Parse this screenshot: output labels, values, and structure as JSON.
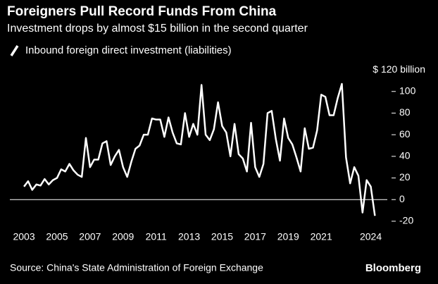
{
  "chart_data": {
    "type": "line",
    "title": "Foreigners Pull Record Funds From China",
    "subtitle": "Investment drops by almost $15 billion in the second quarter",
    "source": "Source: China's State Administration of Foreign Exchange",
    "brand": "Bloomberg",
    "x": [
      2003,
      2003.25,
      2003.5,
      2003.75,
      2004,
      2004.25,
      2004.5,
      2004.75,
      2005,
      2005.25,
      2005.5,
      2005.75,
      2006,
      2006.25,
      2006.5,
      2006.75,
      2007,
      2007.25,
      2007.5,
      2007.75,
      2008,
      2008.25,
      2008.5,
      2008.75,
      2009,
      2009.25,
      2009.5,
      2009.75,
      2010,
      2010.25,
      2010.5,
      2010.75,
      2011,
      2011.25,
      2011.5,
      2011.75,
      2012,
      2012.25,
      2012.5,
      2012.75,
      2013,
      2013.25,
      2013.5,
      2013.75,
      2014,
      2014.25,
      2014.5,
      2014.75,
      2015,
      2015.25,
      2015.5,
      2015.75,
      2016,
      2016.25,
      2016.5,
      2016.75,
      2017,
      2017.25,
      2017.5,
      2017.75,
      2018,
      2018.25,
      2018.5,
      2018.75,
      2019,
      2019.25,
      2019.5,
      2019.75,
      2020,
      2020.25,
      2020.5,
      2020.75,
      2021,
      2021.25,
      2021.5,
      2021.75,
      2022,
      2022.25,
      2022.5,
      2022.75,
      2023,
      2023.25,
      2023.5,
      2023.75,
      2024,
      2024.25
    ],
    "series": [
      {
        "name": "Inbound foreign direct investment (liabilities)",
        "color": "#ffffff",
        "values": [
          12,
          17,
          9,
          14,
          13,
          19,
          14,
          18,
          20,
          28,
          26,
          33,
          27,
          23,
          21,
          57,
          30,
          37,
          37,
          52,
          54,
          32,
          40,
          46,
          30,
          21,
          35,
          47,
          50,
          60,
          60,
          75,
          74,
          74,
          58,
          76,
          62,
          52,
          51,
          80,
          58,
          70,
          60,
          106,
          60,
          55,
          65,
          90,
          68,
          62,
          40,
          70,
          42,
          38,
          26,
          71,
          30,
          21,
          33,
          80,
          82,
          56,
          36,
          75,
          57,
          51,
          39,
          26,
          66,
          47,
          48,
          64,
          97,
          95,
          78,
          78,
          94,
          107,
          39,
          15,
          30,
          22,
          -12,
          18,
          12,
          -15
        ]
      }
    ],
    "xlim": [
      2002.4,
      2025.0
    ],
    "xticks": [
      2003,
      2005,
      2007,
      2009,
      2011,
      2013,
      2015,
      2017,
      2019,
      2021,
      2024
    ],
    "ylim": [
      -22,
      122
    ],
    "yticks": [
      {
        "value": 120,
        "label": "$ 120 billion"
      },
      100,
      80,
      60,
      40,
      20,
      0,
      -20
    ]
  }
}
